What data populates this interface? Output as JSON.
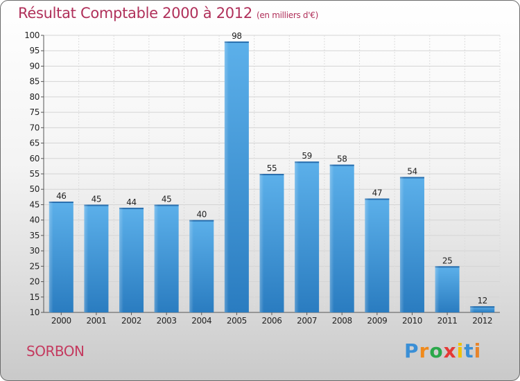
{
  "title": "Résultat Comptable 2000 à 2012",
  "subtitle": "(en milliers d'€)",
  "commune": "SORBON",
  "logo": {
    "letters": [
      "P",
      "r",
      "o",
      "x",
      "i",
      "t",
      "i"
    ],
    "colors": [
      "#3a8fd6",
      "#f08a1c",
      "#2aa84a",
      "#e53935",
      "#f2c200",
      "#3a8fd6",
      "#e8842a"
    ]
  },
  "chart_data": {
    "type": "bar",
    "title": "Résultat Comptable 2000 à 2012",
    "subtitle": "(en milliers d'€)",
    "categories": [
      "2000",
      "2001",
      "2002",
      "2003",
      "2004",
      "2005",
      "2006",
      "2007",
      "2008",
      "2009",
      "2010",
      "2011",
      "2012"
    ],
    "values": [
      46,
      45,
      44,
      45,
      40,
      98,
      55,
      59,
      58,
      47,
      54,
      25,
      12
    ],
    "ylim": [
      10,
      100
    ],
    "yticks": [
      10,
      15,
      20,
      25,
      30,
      35,
      40,
      45,
      50,
      55,
      60,
      65,
      70,
      75,
      80,
      85,
      90,
      95,
      100
    ],
    "xlabel": "",
    "ylabel": "",
    "grid": true,
    "bar_color": "#4f9fde"
  }
}
